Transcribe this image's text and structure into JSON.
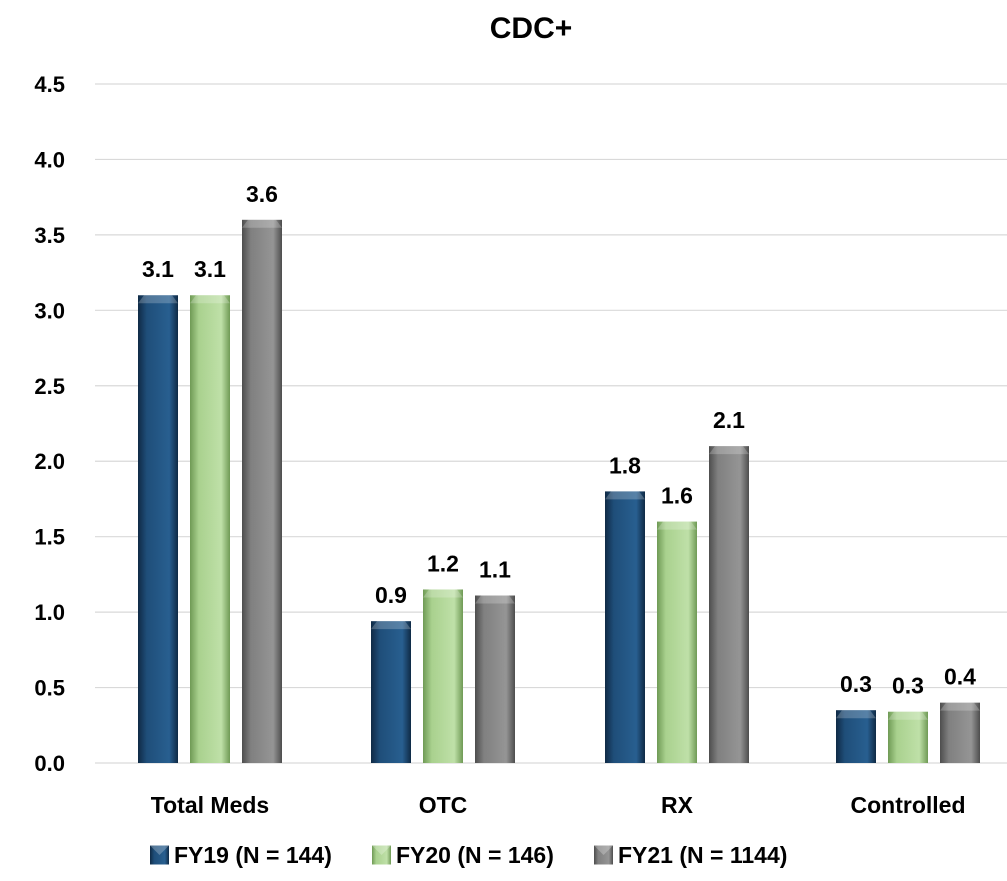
{
  "chart_data": {
    "type": "bar",
    "title": "CDC+",
    "xlabel": "",
    "ylabel": "",
    "ylim": [
      0,
      4.5
    ],
    "yticks": [
      "0.0",
      "0.5",
      "1.0",
      "1.5",
      "2.0",
      "2.5",
      "3.0",
      "3.5",
      "4.0",
      "4.5"
    ],
    "grid": true,
    "legend_position": "bottom",
    "categories": [
      "Total Meds",
      "OTC",
      "RX",
      "Controlled"
    ],
    "series": [
      {
        "name": "FY19 (N = 144)",
        "color": "#1f4e79",
        "values": [
          3.1,
          0.94,
          1.8,
          0.35
        ],
        "labels": [
          "3.1",
          "0.9",
          "1.8",
          "0.3"
        ]
      },
      {
        "name": "FY20 (N = 146)",
        "color": "#a9d18e",
        "values": [
          3.1,
          1.15,
          1.6,
          0.34
        ],
        "labels": [
          "3.1",
          "1.2",
          "1.6",
          "0.3"
        ]
      },
      {
        "name": "FY21 (N = 1144)",
        "color": "#808080",
        "values": [
          3.6,
          1.11,
          2.1,
          0.4
        ],
        "labels": [
          "3.6",
          "1.1",
          "2.1",
          "0.4"
        ]
      }
    ]
  }
}
